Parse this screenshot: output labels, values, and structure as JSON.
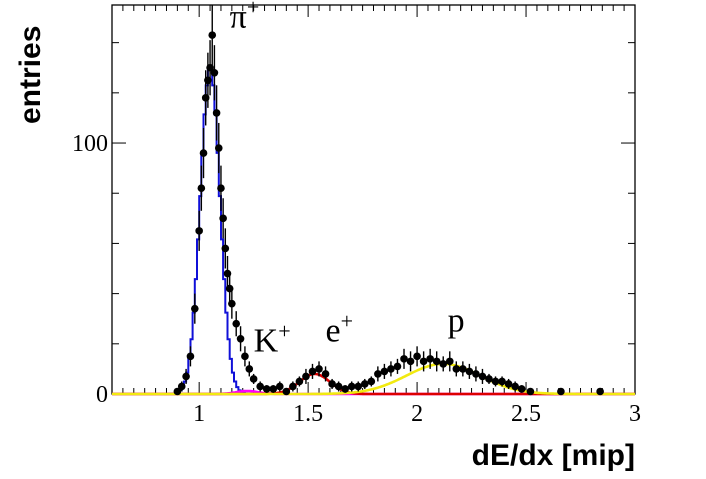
{
  "chart_data": {
    "type": "line",
    "xlabel": "dE/dx [mip]",
    "ylabel": "entries",
    "xlim": [
      0.6,
      3.0
    ],
    "ylim": [
      0,
      155
    ],
    "x_ticks": [
      {
        "value": 1,
        "label": "1"
      },
      {
        "value": 1.5,
        "label": "1.5"
      },
      {
        "value": 2,
        "label": "2"
      },
      {
        "value": 2.5,
        "label": "2.5"
      },
      {
        "value": 3,
        "label": "3"
      }
    ],
    "y_ticks": [
      {
        "value": 0,
        "label": "0"
      },
      {
        "value": 100,
        "label": "100"
      }
    ],
    "grid": false,
    "annotations": [
      {
        "base": "π",
        "sup": "+",
        "x": 1.14,
        "y": 146
      },
      {
        "base": "K",
        "sup": "+",
        "x": 1.25,
        "y": 17
      },
      {
        "base": "e",
        "sup": "+",
        "x": 1.58,
        "y": 21
      },
      {
        "base": "p",
        "sup": "",
        "x": 2.14,
        "y": 25
      }
    ],
    "fits": [
      {
        "particle": "π+",
        "color": "#1010d8",
        "amplitude": 130,
        "mean": 1.05,
        "sigma": 0.045,
        "style": "histogram"
      },
      {
        "particle": "K+",
        "color": "#ff00ff",
        "amplitude": 1.2,
        "mean": 1.22,
        "sigma": 0.05,
        "style": "line"
      },
      {
        "particle": "e+",
        "color": "#dd0000",
        "amplitude": 8,
        "mean": 1.53,
        "sigma": 0.07,
        "style": "line"
      },
      {
        "particle": "p",
        "color": "#f2ea10",
        "amplitude": 12,
        "mean": 2.12,
        "sigma": 0.17,
        "style": "line"
      }
    ],
    "data_points": {
      "color": "#000000",
      "x": [
        0.9,
        0.92,
        0.94,
        0.96,
        0.98,
        1.0,
        1.01,
        1.02,
        1.03,
        1.04,
        1.05,
        1.06,
        1.07,
        1.08,
        1.09,
        1.1,
        1.11,
        1.12,
        1.13,
        1.14,
        1.15,
        1.17,
        1.19,
        1.21,
        1.23,
        1.25,
        1.28,
        1.31,
        1.34,
        1.37,
        1.4,
        1.43,
        1.46,
        1.49,
        1.52,
        1.55,
        1.58,
        1.61,
        1.64,
        1.67,
        1.7,
        1.73,
        1.76,
        1.79,
        1.82,
        1.85,
        1.88,
        1.91,
        1.94,
        1.97,
        2.0,
        2.03,
        2.06,
        2.09,
        2.12,
        2.15,
        2.18,
        2.21,
        2.24,
        2.27,
        2.3,
        2.33,
        2.36,
        2.39,
        2.42,
        2.45,
        2.48,
        2.52,
        2.66,
        2.84
      ],
      "y": [
        1,
        3,
        7,
        15,
        34,
        65,
        82,
        96,
        118,
        125,
        130,
        143,
        128,
        112,
        98,
        82,
        70,
        58,
        48,
        42,
        36,
        28,
        22,
        15,
        10,
        6,
        3,
        2,
        2,
        3,
        1,
        3,
        5,
        7,
        9,
        10,
        8,
        4,
        3,
        2,
        3,
        3,
        4,
        5,
        8,
        9,
        10,
        11,
        14,
        13,
        15,
        13,
        14,
        13,
        12,
        13,
        10,
        10,
        9,
        8,
        7,
        6,
        5,
        5,
        4,
        3,
        2,
        1,
        1,
        1
      ],
      "yerr": [
        1,
        2,
        3,
        4,
        6,
        8,
        9,
        10,
        11,
        11,
        11,
        12,
        11,
        11,
        10,
        9,
        8,
        8,
        7,
        6,
        6,
        5,
        5,
        4,
        3,
        2,
        2,
        1.5,
        1.5,
        2,
        1,
        2,
        2,
        3,
        3,
        3,
        3,
        2,
        2,
        1.5,
        2,
        2,
        2,
        2,
        3,
        3,
        3,
        3,
        4,
        4,
        4,
        4,
        4,
        4,
        3,
        4,
        3,
        3,
        3,
        3,
        3,
        2,
        2,
        2,
        2,
        2,
        1.5,
        1,
        1,
        1
      ]
    }
  }
}
